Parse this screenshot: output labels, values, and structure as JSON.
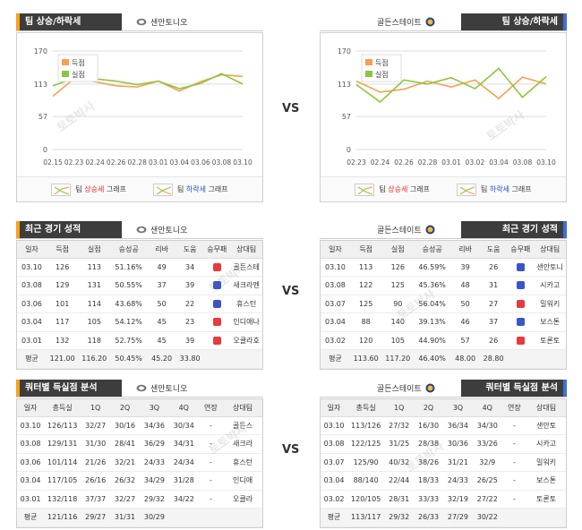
{
  "vs_label": "VS",
  "home": {
    "team": "샌안토니오",
    "chart_header": "팀 상승/하락세",
    "record_header": "최근 경기 성적",
    "quarter_header": "쿼터별 득실점 분석",
    "accent": "#f7a21b"
  },
  "away": {
    "team": "골든스테이트",
    "chart_header": "팀 상승/하락세",
    "record_header": "최근 경기 성적",
    "quarter_header": "쿼터별 득실점 분석",
    "accent": "#3f6fd8"
  },
  "legend": {
    "up_prefix": "팀 ",
    "up_word": "상승세",
    "up_suffix": " 그래프",
    "down_prefix": "팀 ",
    "down_word": "하락세",
    "down_suffix": " 그래프"
  },
  "chart_data": [
    {
      "type": "line",
      "x": [
        "02.15",
        "02.23",
        "02.24",
        "02.26",
        "02.28",
        "03.01",
        "03.04",
        "03.06",
        "03.08",
        "03.10"
      ],
      "series": [
        {
          "name": "득점",
          "color": "#f7a050",
          "values": [
            92,
            122,
            117,
            110,
            108,
            118,
            101,
            117,
            129,
            126
          ]
        },
        {
          "name": "실점",
          "color": "#8cc63e",
          "values": [
            110,
            123,
            122,
            118,
            112,
            118,
            105,
            114,
            131,
            113
          ]
        }
      ],
      "yticks": [
        0,
        57,
        113,
        170
      ],
      "ylim": [
        0,
        170
      ]
    },
    {
      "type": "line",
      "x": [
        "02.23",
        "02.24",
        "02.26",
        "02.28",
        "03.01",
        "03.02",
        "03.04",
        "03.08",
        "03.10"
      ],
      "series": [
        {
          "name": "득점",
          "color": "#f7a050",
          "values": [
            118,
            99,
            104,
            118,
            108,
            120,
            88,
            125,
            113
          ]
        },
        {
          "name": "실점",
          "color": "#8cc63e",
          "values": [
            112,
            82,
            120,
            113,
            124,
            105,
            140,
            90,
            126
          ]
        }
      ],
      "yticks": [
        0,
        57,
        113,
        170
      ],
      "ylim": [
        0,
        170
      ]
    }
  ],
  "record_columns": [
    "일자",
    "득점",
    "실점",
    "승성공",
    "리바",
    "도움",
    "승무패",
    "상대팀"
  ],
  "home_records": [
    [
      "03.10",
      "126",
      "113",
      "51.16%",
      "49",
      "34",
      "w",
      "골든스테"
    ],
    [
      "03.08",
      "129",
      "131",
      "50.55%",
      "37",
      "39",
      "l",
      "새크라멘"
    ],
    [
      "03.06",
      "101",
      "114",
      "43.68%",
      "50",
      "22",
      "l",
      "휴스턴"
    ],
    [
      "03.04",
      "117",
      "105",
      "54.12%",
      "45",
      "23",
      "w",
      "인디애나"
    ],
    [
      "03.01",
      "132",
      "118",
      "52.75%",
      "45",
      "39",
      "w",
      "오클라호"
    ]
  ],
  "home_records_avg": [
    "평균",
    "121.00",
    "116.20",
    "50.45%",
    "45.20",
    "33.80",
    "",
    ""
  ],
  "away_records": [
    [
      "03.10",
      "113",
      "126",
      "46.59%",
      "39",
      "26",
      "l",
      "샌안토니"
    ],
    [
      "03.08",
      "122",
      "125",
      "45.36%",
      "48",
      "31",
      "l",
      "시카고"
    ],
    [
      "03.07",
      "125",
      "90",
      "56.04%",
      "50",
      "27",
      "w",
      "밀워키"
    ],
    [
      "03.04",
      "88",
      "140",
      "39.13%",
      "46",
      "37",
      "l",
      "보스톤"
    ],
    [
      "03.02",
      "120",
      "105",
      "44.90%",
      "57",
      "26",
      "w",
      "토론토"
    ]
  ],
  "away_records_avg": [
    "평균",
    "113.60",
    "117.20",
    "46.40%",
    "48.00",
    "28.80",
    "",
    ""
  ],
  "quarter_columns": [
    "일자",
    "총득실",
    "1Q",
    "2Q",
    "3Q",
    "4Q",
    "연장",
    "상대팀"
  ],
  "home_quarters": [
    [
      "03.10",
      "126/113",
      "32/27",
      "30/16",
      "34/36",
      "30/34",
      "-",
      "골든스"
    ],
    [
      "03.08",
      "129/131",
      "31/30",
      "28/41",
      "36/29",
      "34/31",
      "-",
      "새크라"
    ],
    [
      "03.06",
      "101/114",
      "21/26",
      "32/21",
      "24/33",
      "24/34",
      "-",
      "휴스턴"
    ],
    [
      "03.04",
      "117/105",
      "26/16",
      "26/32",
      "34/29",
      "31/28",
      "-",
      "인디애"
    ],
    [
      "03.01",
      "132/118",
      "37/37",
      "32/27",
      "29/32",
      "34/22",
      "-",
      "오클라"
    ]
  ],
  "home_quarters_avg": [
    "평균",
    "121/116",
    "29/27",
    "31/31",
    "30/29",
    "",
    ""
  ],
  "away_quarters": [
    [
      "03.10",
      "113/126",
      "27/32",
      "16/30",
      "36/34",
      "34/30",
      "-",
      "샌안토"
    ],
    [
      "03.08",
      "122/125",
      "31/25",
      "28/38",
      "30/36",
      "33/26",
      "-",
      "시카고"
    ],
    [
      "03.07",
      "125/90",
      "40/32",
      "38/26",
      "31/21",
      "32/9",
      "-",
      "밀워키"
    ],
    [
      "03.04",
      "88/140",
      "22/44",
      "18/33",
      "24/33",
      "26/25",
      "-",
      "보스톤"
    ],
    [
      "03.02",
      "120/105",
      "28/31",
      "33/33",
      "32/19",
      "27/22",
      "-",
      "토론토"
    ]
  ],
  "away_quarters_avg": [
    "평균",
    "113/117",
    "29/32",
    "26/33",
    "27/29",
    "30/22",
    ""
  ],
  "watermark": "토토박사"
}
